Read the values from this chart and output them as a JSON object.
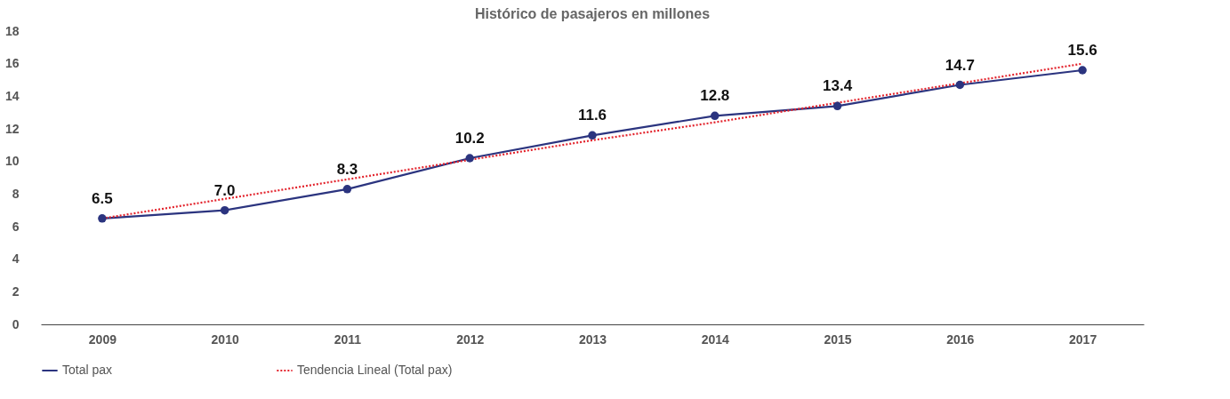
{
  "chart_data": {
    "type": "line",
    "title": "Histórico de pasajeros en millones",
    "categories": [
      "2009",
      "2010",
      "2011",
      "2012",
      "2013",
      "2014",
      "2015",
      "2016",
      "2017"
    ],
    "series": [
      {
        "name": "Total pax",
        "color": "#2b347f",
        "values": [
          6.5,
          7.0,
          8.3,
          10.2,
          11.6,
          12.8,
          13.4,
          14.7,
          15.6
        ],
        "marker": "circle",
        "line_style": "solid",
        "value_labels": [
          "6.5",
          "7.0",
          "8.3",
          "10.2",
          "11.6",
          "12.8",
          "13.4",
          "14.7",
          "15.6"
        ]
      },
      {
        "name": "Tendencia Lineal (Total pax)",
        "color": "#e3232c",
        "values": [
          6.5,
          7.7,
          8.9,
          10.1,
          11.3,
          12.4,
          13.6,
          14.8,
          16.0
        ],
        "marker": "none",
        "line_style": "dotted"
      }
    ],
    "ylim": [
      0,
      18
    ],
    "yticks": [
      0,
      2,
      4,
      6,
      8,
      10,
      12,
      14,
      16,
      18
    ],
    "grid": false,
    "legend": "bottom"
  }
}
